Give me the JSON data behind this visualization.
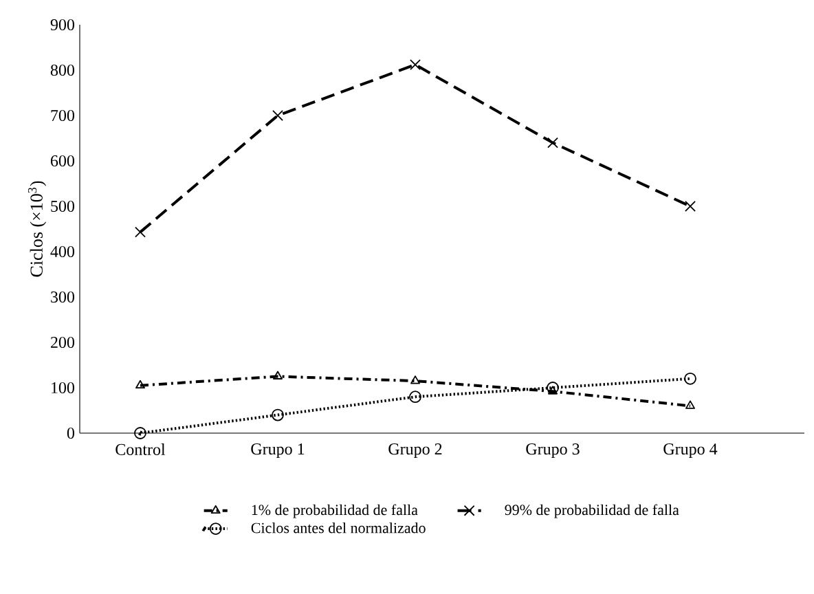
{
  "chart_data": {
    "type": "line",
    "ylabel": "Ciclos (×10$^{3}$)",
    "categories": [
      "Control",
      "Grupo 1",
      "Grupo 2",
      "Grupo 3",
      "Grupo 4"
    ],
    "series": [
      {
        "name": "1% de probabilidad de falla",
        "color": "#000000",
        "values": [
          105,
          125,
          115,
          92,
          60
        ],
        "marker": "triangle",
        "line_style": "dashdot"
      },
      {
        "name": "99% de probabilidad de falla",
        "color": "#000000",
        "values": [
          443,
          700,
          812,
          640,
          500
        ],
        "marker": "cross",
        "line_style": "dashed"
      },
      {
        "name": "Ciclos antes del normalizado",
        "color": "#000000",
        "values": [
          0,
          40,
          80,
          100,
          120
        ],
        "marker": "circle",
        "line_style": "dotted"
      }
    ],
    "ylim": [
      0,
      900
    ],
    "yticks": [
      0,
      100,
      200,
      300,
      400,
      500,
      600,
      700,
      800,
      900
    ],
    "grid": false,
    "legend": "bottom"
  }
}
